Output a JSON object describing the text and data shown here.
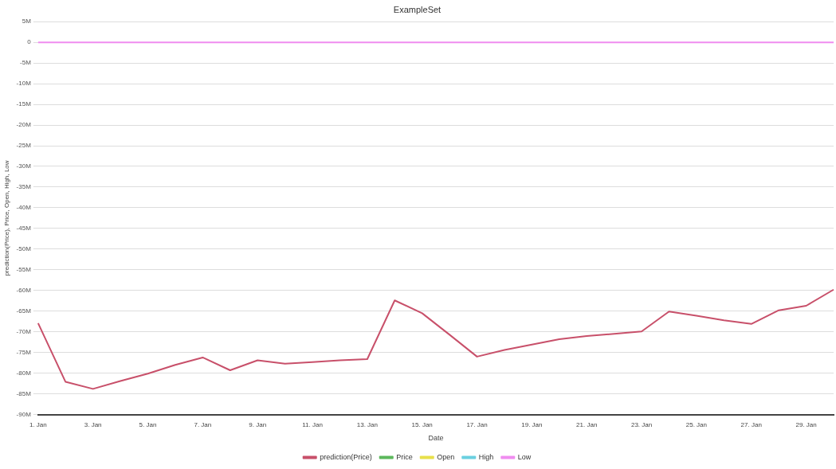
{
  "chart_data": {
    "type": "line",
    "title": "ExampleSet",
    "xlabel": "Date",
    "ylabel": "prediction(Price), Price, Open, High, Low",
    "categories": [
      "1. Jan",
      null,
      "3. Jan",
      null,
      "5. Jan",
      null,
      "7. Jan",
      null,
      "9. Jan",
      null,
      "11. Jan",
      null,
      "13. Jan",
      null,
      "15. Jan",
      null,
      "17. Jan",
      null,
      "19. Jan",
      null,
      "21. Jan",
      null,
      "23. Jan",
      null,
      "25. Jan",
      null,
      "27. Jan",
      null,
      "29. Jan",
      null
    ],
    "series": [
      {
        "name": "prediction(Price)",
        "color": "#c8506a",
        "values": [
          -67900000,
          -82100000,
          -83800000,
          -81900000,
          -80100000,
          -78000000,
          -76200000,
          -79300000,
          -76900000,
          -77700000,
          -77300000,
          -76900000,
          -76600000,
          -62400000,
          -65500000,
          -70700000,
          -76000000,
          -74400000,
          -73100000,
          -71800000,
          -71000000,
          -70500000,
          -69900000,
          -65100000,
          -66100000,
          -67200000,
          -68100000,
          -64800000,
          -63700000,
          -59800000
        ]
      },
      {
        "name": "Price",
        "color": "#5cb85c",
        "values": [
          null,
          null,
          null,
          null,
          null,
          null,
          null,
          null,
          null,
          null,
          null,
          null,
          null,
          null,
          null,
          null,
          null,
          null,
          null,
          null,
          null,
          null,
          null,
          null,
          null,
          null,
          null,
          null,
          null,
          null
        ]
      },
      {
        "name": "Open",
        "color": "#e8e04a",
        "values": [
          null,
          null,
          null,
          null,
          null,
          null,
          null,
          null,
          null,
          null,
          null,
          null,
          null,
          null,
          null,
          null,
          null,
          null,
          null,
          null,
          null,
          null,
          null,
          null,
          null,
          null,
          null,
          null,
          null,
          null
        ]
      },
      {
        "name": "High",
        "color": "#6ad0e0",
        "values": [
          null,
          null,
          null,
          null,
          null,
          null,
          null,
          null,
          null,
          null,
          null,
          null,
          null,
          null,
          null,
          null,
          null,
          null,
          null,
          null,
          null,
          null,
          null,
          null,
          null,
          null,
          null,
          null,
          null,
          null
        ]
      },
      {
        "name": "Low",
        "color": "#f08cf0",
        "values": [
          0,
          0,
          0,
          0,
          0,
          0,
          0,
          0,
          0,
          0,
          0,
          0,
          0,
          0,
          0,
          0,
          0,
          0,
          0,
          0,
          0,
          0,
          0,
          0,
          0,
          0,
          0,
          0,
          0,
          0
        ]
      }
    ],
    "ylim": [
      -90000000,
      5000000
    ],
    "yticks": [
      {
        "value": 5000000,
        "label": "5M"
      },
      0,
      {
        "value": -5000000,
        "label": "-5M"
      },
      {
        "value": -10000000,
        "label": "-10M"
      },
      {
        "value": -15000000,
        "label": "-15M"
      },
      {
        "value": -20000000,
        "label": "-20M"
      },
      {
        "value": -25000000,
        "label": "-25M"
      },
      {
        "value": -30000000,
        "label": "-30M"
      },
      {
        "value": -35000000,
        "label": "-35M"
      },
      {
        "value": -40000000,
        "label": "-40M"
      },
      {
        "value": -45000000,
        "label": "-45M"
      },
      {
        "value": -50000000,
        "label": "-50M"
      },
      {
        "value": -55000000,
        "label": "-55M"
      },
      {
        "value": -60000000,
        "label": "-60M"
      },
      {
        "value": -65000000,
        "label": "-65M"
      },
      {
        "value": -70000000,
        "label": "-70M"
      },
      {
        "value": -75000000,
        "label": "-75M"
      },
      {
        "value": -80000000,
        "label": "-80M"
      },
      {
        "value": -85000000,
        "label": "-85M"
      },
      {
        "value": -90000000,
        "label": "-90M"
      }
    ],
    "grid": "y",
    "legend": "bottom",
    "marker": "none",
    "line_style": "solid"
  }
}
